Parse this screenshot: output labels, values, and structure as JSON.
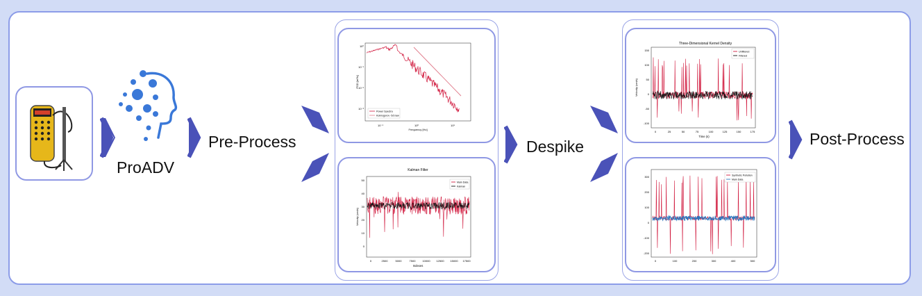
{
  "stages": {
    "proadv": "ProADV",
    "preprocess": "Pre-Process",
    "despike": "Despike",
    "postprocess": "Post-Process"
  },
  "colors": {
    "page_bg": "#d2dcf6",
    "frame_border": "#8c9ce8",
    "arrow": "#4a52b8",
    "crimson": "#d11a3e",
    "blue": "#2a78c0",
    "brain": "#3a78d8"
  },
  "charts": {
    "spectrum": {
      "ylabel": "PSD [m²/s]",
      "xlabel": "Frequency [Hz]",
      "xticks": [
        "10⁻¹",
        "10⁰",
        "10¹"
      ],
      "yticks": [
        "10⁰",
        "10⁻¹",
        "10⁻²",
        "10⁻³"
      ],
      "legend": [
        "Power Spectra",
        "Kolmogorov -5/3 law"
      ]
    },
    "kalman": {
      "title": "Kalman Filter",
      "xlabel": "Indexes",
      "ylabel": "Velocity (cm/s)",
      "xticks": [
        "0",
        "2500",
        "5000",
        "7500",
        "10000",
        "12500",
        "15000",
        "17500"
      ],
      "yticks": [
        "50",
        "40",
        "30",
        "20",
        "10",
        "0"
      ],
      "legend": [
        "Main Data",
        "Kalman"
      ]
    },
    "kde": {
      "title": "Three-Dimensional Kernel Density",
      "xlabel": "Time (s)",
      "ylabel": "Velocity (cm/s)",
      "xticks": [
        "0",
        "25",
        "50",
        "75",
        "100",
        "125",
        "150",
        "175"
      ],
      "yticks": [
        "150",
        "100",
        "50",
        "0",
        "-50",
        "-100"
      ],
      "legend": [
        "Unfiltered",
        "Filtered"
      ]
    },
    "synthetic": {
      "xticks": [
        "0",
        "100",
        "200",
        "300",
        "400",
        "500"
      ],
      "yticks": [
        "300",
        "200",
        "100",
        "0",
        "-100",
        "-200"
      ],
      "legend": [
        "Synthetic Pollution",
        "Main Data"
      ]
    }
  },
  "chart_data": [
    {
      "type": "line",
      "title": "",
      "xlabel": "Frequency [Hz]",
      "ylabel": "PSD [m²/s]",
      "x_scale": "log",
      "y_scale": "log",
      "series": [
        {
          "name": "Power Spectra"
        },
        {
          "name": "Kolmogorov -5/3 law"
        }
      ]
    },
    {
      "type": "line",
      "title": "Kalman Filter",
      "xlabel": "Indexes",
      "ylabel": "Velocity (cm/s)",
      "xlim": [
        0,
        17500
      ],
      "ylim": [
        0,
        50
      ],
      "series": [
        {
          "name": "Main Data"
        },
        {
          "name": "Kalman"
        }
      ]
    },
    {
      "type": "line",
      "title": "Three-Dimensional Kernel Density",
      "xlabel": "Time (s)",
      "ylabel": "Velocity (cm/s)",
      "xlim": [
        0,
        180
      ],
      "ylim": [
        -120,
        150
      ],
      "series": [
        {
          "name": "Unfiltered"
        },
        {
          "name": "Filtered"
        }
      ]
    },
    {
      "type": "line",
      "title": "",
      "xlim": [
        0,
        500
      ],
      "ylim": [
        -250,
        300
      ],
      "series": [
        {
          "name": "Synthetic Pollution"
        },
        {
          "name": "Main Data"
        }
      ]
    }
  ]
}
